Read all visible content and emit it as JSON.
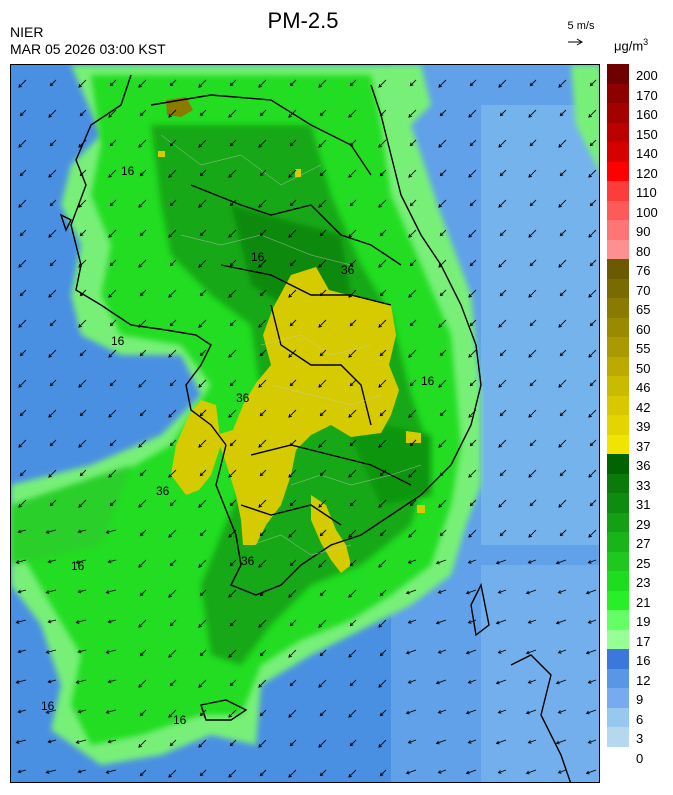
{
  "header": {
    "organization": "NIER",
    "timestamp": "MAR 05 2026 03:00 KST",
    "title": "PM-2.5",
    "wind_reference": "5 m/s",
    "unit": "μg/m",
    "unit_sup": "3"
  },
  "map": {
    "contour_labels": [
      "16",
      "16",
      "16",
      "36",
      "36",
      "36",
      "36",
      "16",
      "16",
      "16",
      "16"
    ],
    "wind_direction": "predominantly north-easterly (arrows point south-west)"
  },
  "legend": {
    "levels": [
      {
        "label": "200",
        "color": "#6e0000"
      },
      {
        "label": "170",
        "color": "#8c0000"
      },
      {
        "label": "160",
        "color": "#a40000"
      },
      {
        "label": "150",
        "color": "#bc0000"
      },
      {
        "label": "140",
        "color": "#d70000"
      },
      {
        "label": "120",
        "color": "#ff0000"
      },
      {
        "label": "110",
        "color": "#ff3c3c"
      },
      {
        "label": "100",
        "color": "#ff5a5a"
      },
      {
        "label": "90",
        "color": "#ff7474"
      },
      {
        "label": "80",
        "color": "#ff9090"
      },
      {
        "label": "76",
        "color": "#6b5a00"
      },
      {
        "label": "70",
        "color": "#7a6b00"
      },
      {
        "label": "65",
        "color": "#8a7a00"
      },
      {
        "label": "60",
        "color": "#9a8a00"
      },
      {
        "label": "55",
        "color": "#aa9900"
      },
      {
        "label": "50",
        "color": "#bcaa00"
      },
      {
        "label": "46",
        "color": "#cbbb00"
      },
      {
        "label": "42",
        "color": "#d9c800"
      },
      {
        "label": "39",
        "color": "#e4d400"
      },
      {
        "label": "37",
        "color": "#f0e400"
      },
      {
        "label": "36",
        "color": "#006400"
      },
      {
        "label": "33",
        "color": "#0a7a0a"
      },
      {
        "label": "31",
        "color": "#0f8c0f"
      },
      {
        "label": "29",
        "color": "#14a014"
      },
      {
        "label": "27",
        "color": "#19b419"
      },
      {
        "label": "25",
        "color": "#1ec81e"
      },
      {
        "label": "23",
        "color": "#1edc1e"
      },
      {
        "label": "21",
        "color": "#28f028"
      },
      {
        "label": "19",
        "color": "#64ff64"
      },
      {
        "label": "17",
        "color": "#96ff96"
      },
      {
        "label": "16",
        "color": "#3c78dc"
      },
      {
        "label": "12",
        "color": "#5a96e6"
      },
      {
        "label": "9",
        "color": "#78aaf0"
      },
      {
        "label": "6",
        "color": "#96c8f0"
      },
      {
        "label": "3",
        "color": "#b4d8f0"
      },
      {
        "label": "0",
        "color": ""
      }
    ]
  }
}
